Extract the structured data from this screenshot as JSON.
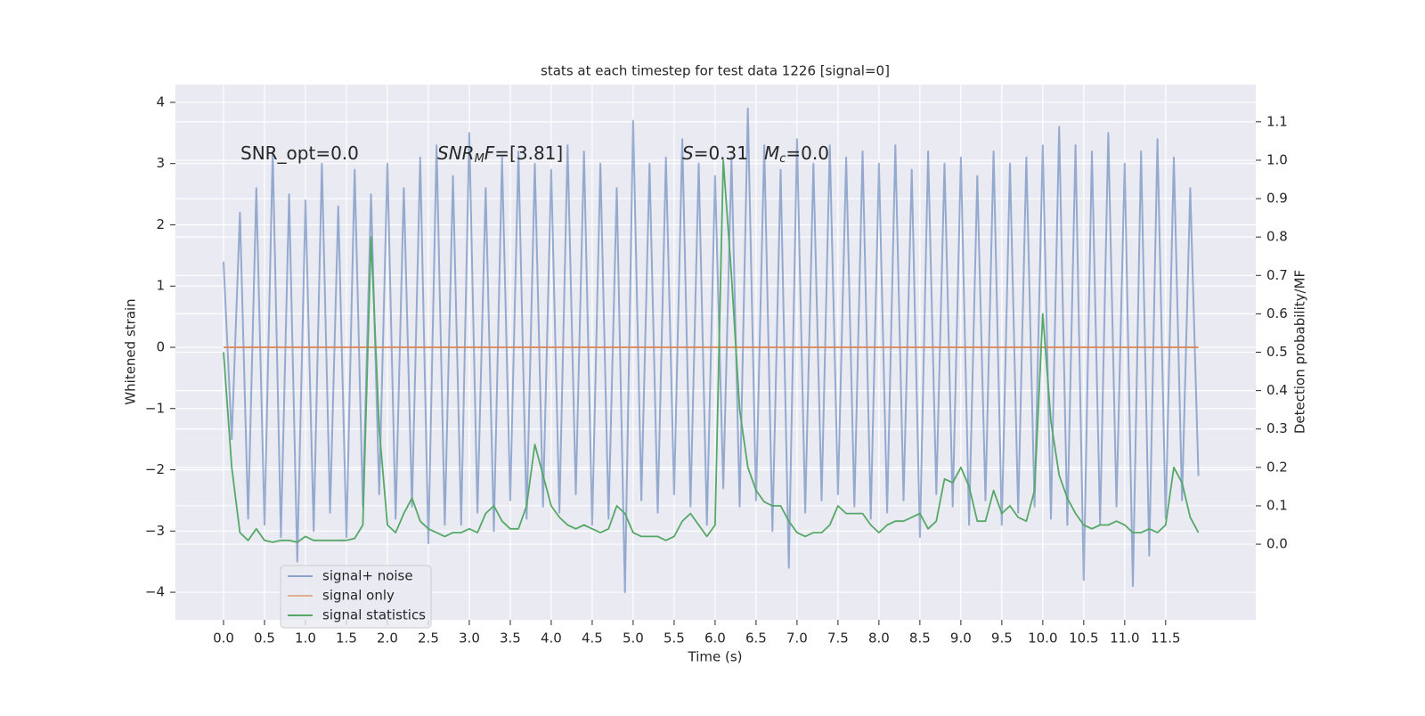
{
  "chart_data": {
    "type": "line",
    "title": "stats at each timestep for test data 1226 [signal=0]",
    "xlabel": "Time (s)",
    "ylabel": "Whitened strain",
    "y2label": "Detection probability/MF",
    "annotations": [
      [
        {
          "text": "SNR_opt=0.0"
        }
      ],
      [
        {
          "text": "SNR",
          "style": "italic"
        },
        {
          "text": "M",
          "style": "sub"
        },
        {
          "text": "F",
          "style": "italic"
        },
        {
          "text": "=[3.81]"
        }
      ],
      [
        {
          "text": "S",
          "style": "italic"
        },
        {
          "text": "=0.31"
        }
      ],
      [
        {
          "text": "M",
          "style": "italic"
        },
        {
          "text": "c",
          "style": "sub"
        },
        {
          "text": "=0.0"
        }
      ]
    ],
    "x": [
      0,
      0.1,
      0.2,
      0.3,
      0.4,
      0.5,
      0.6,
      0.7,
      0.8,
      0.9,
      1,
      1.1,
      1.2,
      1.3,
      1.4,
      1.5,
      1.6,
      1.7,
      1.8,
      1.9,
      2,
      2.1,
      2.2,
      2.3,
      2.4,
      2.5,
      2.6,
      2.7,
      2.8,
      2.9,
      3,
      3.1,
      3.2,
      3.3,
      3.4,
      3.5,
      3.6,
      3.7,
      3.8,
      3.9,
      4,
      4.1,
      4.2,
      4.3,
      4.4,
      4.5,
      4.6,
      4.7,
      4.8,
      4.9,
      5,
      5.1,
      5.2,
      5.3,
      5.4,
      5.5,
      5.6,
      5.7,
      5.8,
      5.9,
      6,
      6.1,
      6.2,
      6.3,
      6.4,
      6.5,
      6.6,
      6.7,
      6.8,
      6.9,
      7,
      7.1,
      7.2,
      7.3,
      7.4,
      7.5,
      7.6,
      7.7,
      7.8,
      7.9,
      8,
      8.1,
      8.2,
      8.3,
      8.4,
      8.5,
      8.6,
      8.7,
      8.8,
      8.9,
      9,
      9.1,
      9.2,
      9.3,
      9.4,
      9.5,
      9.6,
      9.7,
      9.8,
      9.9,
      10,
      10.1,
      10.2,
      10.3,
      10.4,
      10.5,
      10.6,
      10.7,
      10.8,
      10.9,
      11,
      11.1,
      11.2,
      11.3,
      11.4,
      11.5,
      11.6,
      11.7,
      11.8,
      11.9
    ],
    "series": [
      {
        "name": "signal+ noise",
        "color": "#4c72b0",
        "values": [
          1.4,
          -1.5,
          2.2,
          -2.8,
          2.6,
          -2.9,
          3.2,
          -3.1,
          2.5,
          -3.5,
          2.4,
          -3.0,
          3.0,
          -2.7,
          2.3,
          -3.1,
          2.9,
          -2.6,
          2.5,
          -2.4,
          3.0,
          -2.8,
          2.6,
          -2.6,
          3.1,
          -3.2,
          3.3,
          -2.9,
          2.8,
          -2.9,
          3.5,
          -2.7,
          2.6,
          -3.0,
          3.1,
          -2.5,
          3.2,
          -2.8,
          3.0,
          -2.6,
          2.9,
          -2.7,
          3.3,
          -2.4,
          3.2,
          -2.9,
          3.0,
          -2.8,
          2.6,
          -4.0,
          3.7,
          -2.5,
          3.0,
          -2.7,
          3.1,
          -2.4,
          3.4,
          -2.6,
          3.0,
          -2.9,
          2.8,
          -2.3,
          3.1,
          -2.6,
          3.9,
          -2.5,
          3.3,
          -3.0,
          2.9,
          -3.6,
          3.4,
          -2.7,
          3.0,
          -2.5,
          3.3,
          -2.4,
          3.1,
          -2.6,
          3.2,
          -2.8,
          3.0,
          -2.7,
          3.3,
          -2.5,
          2.9,
          -3.1,
          3.2,
          -2.4,
          3.0,
          -2.6,
          3.1,
          -2.9,
          2.8,
          -2.5,
          3.2,
          -2.9,
          3.0,
          -2.7,
          3.1,
          -2.6,
          3.3,
          -2.8,
          3.6,
          -2.9,
          3.3,
          -3.8,
          3.2,
          -2.9,
          3.5,
          -2.6,
          3.0,
          -3.9,
          3.2,
          -3.4,
          3.4,
          -2.8,
          3.1,
          -2.5,
          2.6,
          -2.1
        ]
      },
      {
        "name": "signal only",
        "color": "#dd8452",
        "values": [
          0,
          0,
          0,
          0,
          0,
          0,
          0,
          0,
          0,
          0,
          0,
          0,
          0,
          0,
          0,
          0,
          0,
          0,
          0,
          0,
          0,
          0,
          0,
          0,
          0,
          0,
          0,
          0,
          0,
          0,
          0,
          0,
          0,
          0,
          0,
          0,
          0,
          0,
          0,
          0,
          0,
          0,
          0,
          0,
          0,
          0,
          0,
          0,
          0,
          0,
          0,
          0,
          0,
          0,
          0,
          0,
          0,
          0,
          0,
          0,
          0,
          0,
          0,
          0,
          0,
          0,
          0,
          0,
          0,
          0,
          0,
          0,
          0,
          0,
          0,
          0,
          0,
          0,
          0,
          0,
          0,
          0,
          0,
          0,
          0,
          0,
          0,
          0,
          0,
          0,
          0,
          0,
          0,
          0,
          0,
          0,
          0,
          0,
          0,
          0,
          0,
          0,
          0,
          0,
          0,
          0,
          0,
          0,
          0,
          0,
          0,
          0,
          0,
          0,
          0,
          0,
          0,
          0,
          0,
          0
        ]
      },
      {
        "name": "signal statistics",
        "color": "#55a868",
        "axis": "y2",
        "values": [
          0.5,
          0.2,
          0.03,
          0.01,
          0.04,
          0.01,
          0.005,
          0.01,
          0.01,
          0.005,
          0.02,
          0.01,
          0.01,
          0.01,
          0.01,
          0.01,
          0.015,
          0.05,
          0.8,
          0.3,
          0.05,
          0.03,
          0.08,
          0.12,
          0.06,
          0.04,
          0.03,
          0.02,
          0.03,
          0.03,
          0.04,
          0.03,
          0.08,
          0.1,
          0.06,
          0.04,
          0.04,
          0.1,
          0.26,
          0.18,
          0.1,
          0.07,
          0.05,
          0.04,
          0.05,
          0.04,
          0.03,
          0.04,
          0.1,
          0.08,
          0.03,
          0.02,
          0.02,
          0.02,
          0.01,
          0.02,
          0.06,
          0.08,
          0.05,
          0.02,
          0.05,
          1.0,
          0.7,
          0.35,
          0.2,
          0.14,
          0.11,
          0.1,
          0.1,
          0.06,
          0.03,
          0.02,
          0.03,
          0.03,
          0.05,
          0.1,
          0.08,
          0.08,
          0.08,
          0.05,
          0.03,
          0.05,
          0.06,
          0.06,
          0.07,
          0.08,
          0.04,
          0.06,
          0.17,
          0.16,
          0.2,
          0.15,
          0.06,
          0.06,
          0.14,
          0.08,
          0.1,
          0.07,
          0.06,
          0.14,
          0.6,
          0.32,
          0.18,
          0.12,
          0.08,
          0.05,
          0.04,
          0.05,
          0.05,
          0.06,
          0.05,
          0.03,
          0.03,
          0.04,
          0.03,
          0.05,
          0.2,
          0.16,
          0.07,
          0.03
        ]
      }
    ],
    "xlim": [
      -0.587,
      12.6
    ],
    "xticks": [
      {
        "value": 0,
        "label": "0.0"
      },
      0.5,
      {
        "value": 1,
        "label": "1.0"
      },
      1.5,
      {
        "value": 2,
        "label": "2.0"
      },
      2.5,
      {
        "value": 3,
        "label": "3.0"
      },
      3.5,
      {
        "value": 4,
        "label": "4.0"
      },
      4.5,
      {
        "value": 5,
        "label": "5.0"
      },
      5.5,
      {
        "value": 6,
        "label": "6.0"
      },
      6.5,
      {
        "value": 7,
        "label": "7.0"
      },
      7.5,
      {
        "value": 8,
        "label": "8.0"
      },
      8.5,
      {
        "value": 9,
        "label": "9.0"
      },
      9.5,
      {
        "value": 10,
        "label": "10.0"
      },
      10.5,
      {
        "value": 11,
        "label": "11.0"
      },
      11.5
    ],
    "ylim": [
      -4.45,
      4.29
    ],
    "yticks": [
      {
        "value": -4,
        "label": "−4"
      },
      {
        "value": -3,
        "label": "−3"
      },
      {
        "value": -2,
        "label": "−2"
      },
      {
        "value": -1,
        "label": "−1"
      },
      0,
      1,
      2,
      3,
      4
    ],
    "y2lim": [
      -0.197,
      1.197
    ],
    "y2ticks": [
      {
        "value": 0,
        "label": "0.0"
      },
      0.1,
      0.2,
      0.3,
      0.4,
      0.5,
      0.6,
      0.7,
      0.8,
      0.9,
      {
        "value": 1,
        "label": "1.0"
      },
      1.1
    ],
    "grid": true,
    "legend": "lower left"
  }
}
